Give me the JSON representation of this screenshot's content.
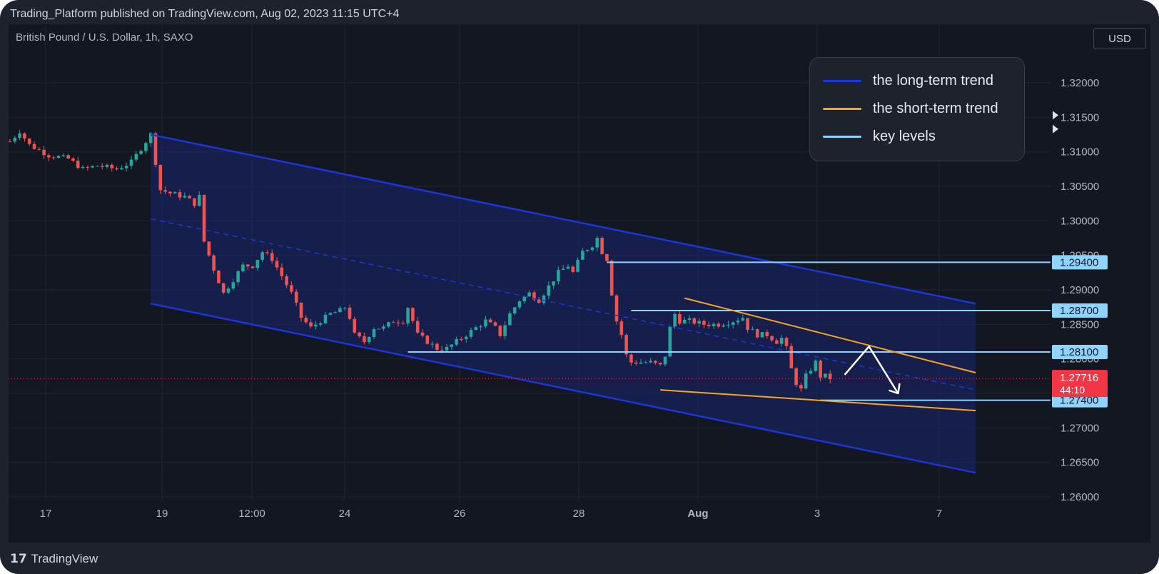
{
  "header": {
    "published_line": "Trading_Platform published on TradingView.com, Aug 02, 2023 11:15 UTC+4"
  },
  "chart_header": {
    "symbol": "British Pound / U.S. Dollar, 1h, SAXO",
    "currency_button": "USD"
  },
  "legend": [
    {
      "label": "the long-term trend",
      "color": "#1c35d6"
    },
    {
      "label": "the short-term trend",
      "color": "#f5a623"
    },
    {
      "label": "key levels",
      "color": "#8fd3ff"
    }
  ],
  "footer": {
    "brand": "TradingView",
    "logo_glyph": "17"
  },
  "colors": {
    "background": "#131722",
    "frame": "#1e222d",
    "grid": "#1f2430",
    "up_candle": "#26a69a",
    "down_candle": "#ef5350",
    "channel_line": "#1c35d6",
    "channel_fill": "#1a2470",
    "short_trend": "#f5a623",
    "key_level": "#8fd3ff",
    "arrow": "#ffffff",
    "price_tag": "#f23645"
  },
  "chart_data": {
    "type": "candlestick",
    "title": "British Pound / U.S. Dollar, 1h, SAXO",
    "x_labels": [
      "17",
      "19",
      "12:00",
      "24",
      "26",
      "28",
      "Aug",
      "3",
      "7"
    ],
    "y_ticks": [
      1.32,
      1.315,
      1.31,
      1.305,
      1.3,
      1.295,
      1.29,
      1.285,
      1.28,
      1.275,
      1.27,
      1.265,
      1.26
    ],
    "y_tick_labels": [
      "1.32000",
      "1.31500",
      "1.31000",
      "1.30500",
      "1.30000",
      "1.29500",
      "1.29000",
      "1.28500",
      "1.28000",
      "1.27500",
      "1.27000",
      "1.26500",
      "1.26000"
    ],
    "ylim": [
      1.26,
      1.32
    ],
    "price_path": [
      [
        0.0,
        1.3115
      ],
      [
        2.0,
        1.313
      ],
      [
        4.0,
        1.311
      ],
      [
        8.0,
        1.3095
      ],
      [
        12.0,
        1.309
      ],
      [
        15.0,
        1.3075
      ],
      [
        18.0,
        1.308
      ],
      [
        22.0,
        1.3075
      ],
      [
        25.0,
        1.3085
      ],
      [
        28.0,
        1.3115
      ],
      [
        29.0,
        1.3125
      ],
      [
        30.0,
        1.3085
      ],
      [
        31.0,
        1.3045
      ],
      [
        33.0,
        1.304
      ],
      [
        36.0,
        1.3035
      ],
      [
        38.0,
        1.3025
      ],
      [
        39.0,
        1.3035
      ],
      [
        40.0,
        1.297
      ],
      [
        42.0,
        1.293
      ],
      [
        44.0,
        1.2895
      ],
      [
        46.0,
        1.2915
      ],
      [
        48.0,
        1.2935
      ],
      [
        50.0,
        1.2935
      ],
      [
        52.0,
        1.2955
      ],
      [
        54.0,
        1.2945
      ],
      [
        56.0,
        1.292
      ],
      [
        58.0,
        1.2895
      ],
      [
        60.0,
        1.286
      ],
      [
        62.0,
        1.2845
      ],
      [
        64.0,
        1.2855
      ],
      [
        66.0,
        1.2865
      ],
      [
        68.0,
        1.287
      ],
      [
        69.0,
        1.2875
      ],
      [
        70.0,
        1.286
      ],
      [
        71.0,
        1.2835
      ],
      [
        73.0,
        1.2825
      ],
      [
        75.0,
        1.2845
      ],
      [
        77.0,
        1.2845
      ],
      [
        79.0,
        1.2855
      ],
      [
        81.0,
        1.2855
      ],
      [
        82.0,
        1.2875
      ],
      [
        84.0,
        1.2835
      ],
      [
        86.0,
        1.2825
      ],
      [
        88.0,
        1.2815
      ],
      [
        90.0,
        1.2815
      ],
      [
        92.0,
        1.2825
      ],
      [
        94.0,
        1.2835
      ],
      [
        96.0,
        1.2845
      ],
      [
        98.0,
        1.2855
      ],
      [
        100.0,
        1.2845
      ],
      [
        101.0,
        1.2835
      ],
      [
        103.0,
        1.2865
      ],
      [
        105.0,
        1.2885
      ],
      [
        107.0,
        1.2895
      ],
      [
        109.0,
        1.2885
      ],
      [
        111.0,
        1.2905
      ],
      [
        113.0,
        1.2925
      ],
      [
        115.0,
        1.2935
      ],
      [
        116.0,
        1.2925
      ],
      [
        118.0,
        1.2955
      ],
      [
        120.0,
        1.2965
      ],
      [
        121.0,
        1.2975
      ],
      [
        122.0,
        1.2955
      ],
      [
        123.0,
        1.2945
      ],
      [
        124.0,
        1.2895
      ],
      [
        125.0,
        1.2855
      ],
      [
        126.0,
        1.2835
      ],
      [
        127.0,
        1.2805
      ],
      [
        128.0,
        1.2795
      ],
      [
        130.0,
        1.2795
      ],
      [
        132.0,
        1.2795
      ],
      [
        134.0,
        1.279
      ],
      [
        135.0,
        1.2805
      ],
      [
        136.0,
        1.2845
      ],
      [
        137.0,
        1.2865
      ],
      [
        138.0,
        1.2855
      ],
      [
        140.0,
        1.2855
      ],
      [
        143.0,
        1.285
      ],
      [
        146.0,
        1.285
      ],
      [
        149.0,
        1.2855
      ],
      [
        151.0,
        1.286
      ],
      [
        152.0,
        1.2845
      ],
      [
        154.0,
        1.2835
      ],
      [
        156.0,
        1.2835
      ],
      [
        158.0,
        1.2825
      ],
      [
        159.0,
        1.283
      ],
      [
        160.0,
        1.2815
      ],
      [
        161.0,
        1.2785
      ],
      [
        162.0,
        1.2765
      ],
      [
        163.0,
        1.2755
      ],
      [
        164.0,
        1.2775
      ],
      [
        165.0,
        1.2785
      ],
      [
        166.0,
        1.2795
      ],
      [
        167.0,
        1.2775
      ],
      [
        168.0,
        1.2775
      ],
      [
        169.0,
        1.2772
      ]
    ],
    "last_price": {
      "value": 1.27716,
      "label": "1.27716",
      "countdown": "44:10"
    },
    "key_levels": [
      {
        "value": 1.294,
        "label": "1.29400",
        "from": 123.0
      },
      {
        "value": 1.287,
        "label": "1.28700",
        "from": 128.0
      },
      {
        "value": 1.281,
        "label": "1.28100",
        "from": 82.0
      },
      {
        "value": 1.274,
        "label": "1.27400",
        "from": 167.0
      }
    ],
    "long_term_channel": {
      "upper": [
        [
          29.0,
          1.3125
        ],
        [
          199.0,
          1.288
        ]
      ],
      "middle": [
        [
          29.0,
          1.3003
        ],
        [
          199.0,
          1.2755
        ]
      ],
      "lower": [
        [
          29.0,
          1.288
        ],
        [
          199.0,
          1.2635
        ]
      ]
    },
    "short_term_trend": {
      "upper": [
        [
          139.0,
          1.2888
        ],
        [
          199.0,
          1.278
        ]
      ],
      "lower": [
        [
          134.0,
          1.2755
        ],
        [
          199.0,
          1.2725
        ]
      ]
    },
    "projection_arrow": [
      [
        172.0,
        1.2777
      ],
      [
        177.0,
        1.2818
      ],
      [
        183.0,
        1.275
      ]
    ],
    "scale_markers": [
      1.3153,
      1.3133
    ]
  }
}
